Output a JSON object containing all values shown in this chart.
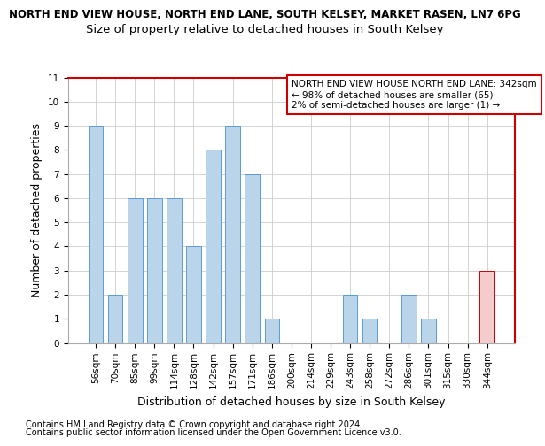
{
  "title1": "NORTH END VIEW HOUSE, NORTH END LANE, SOUTH KELSEY, MARKET RASEN, LN7 6PG",
  "title2": "Size of property relative to detached houses in South Kelsey",
  "xlabel": "Distribution of detached houses by size in South Kelsey",
  "ylabel": "Number of detached properties",
  "categories": [
    "56sqm",
    "70sqm",
    "85sqm",
    "99sqm",
    "114sqm",
    "128sqm",
    "142sqm",
    "157sqm",
    "171sqm",
    "186sqm",
    "200sqm",
    "214sqm",
    "229sqm",
    "243sqm",
    "258sqm",
    "272sqm",
    "286sqm",
    "301sqm",
    "315sqm",
    "330sqm",
    "344sqm"
  ],
  "values": [
    9,
    2,
    6,
    6,
    6,
    4,
    8,
    9,
    7,
    1,
    0,
    0,
    0,
    2,
    1,
    0,
    2,
    1,
    0,
    0,
    3
  ],
  "highlight_index": 20,
  "bar_color": "#bad4ea",
  "bar_edge_color": "#5b9bd5",
  "highlight_bar_color": "#f4cccc",
  "highlight_bar_edge_color": "#cc0000",
  "annotation_text": "NORTH END VIEW HOUSE NORTH END LANE: 342sqm\n← 98% of detached houses are smaller (65)\n2% of semi-detached houses are larger (1) →",
  "annotation_box_edge_color": "#cc0000",
  "annotation_fontsize": 7.5,
  "ylim": [
    0,
    11
  ],
  "yticks": [
    0,
    1,
    2,
    3,
    4,
    5,
    6,
    7,
    8,
    9,
    10,
    11
  ],
  "grid_color": "#cccccc",
  "footnote1": "Contains HM Land Registry data © Crown copyright and database right 2024.",
  "footnote2": "Contains public sector information licensed under the Open Government Licence v3.0.",
  "title1_fontsize": 8.5,
  "title2_fontsize": 9.5,
  "xlabel_fontsize": 9,
  "ylabel_fontsize": 9,
  "tick_fontsize": 7.5,
  "footnote_fontsize": 7
}
